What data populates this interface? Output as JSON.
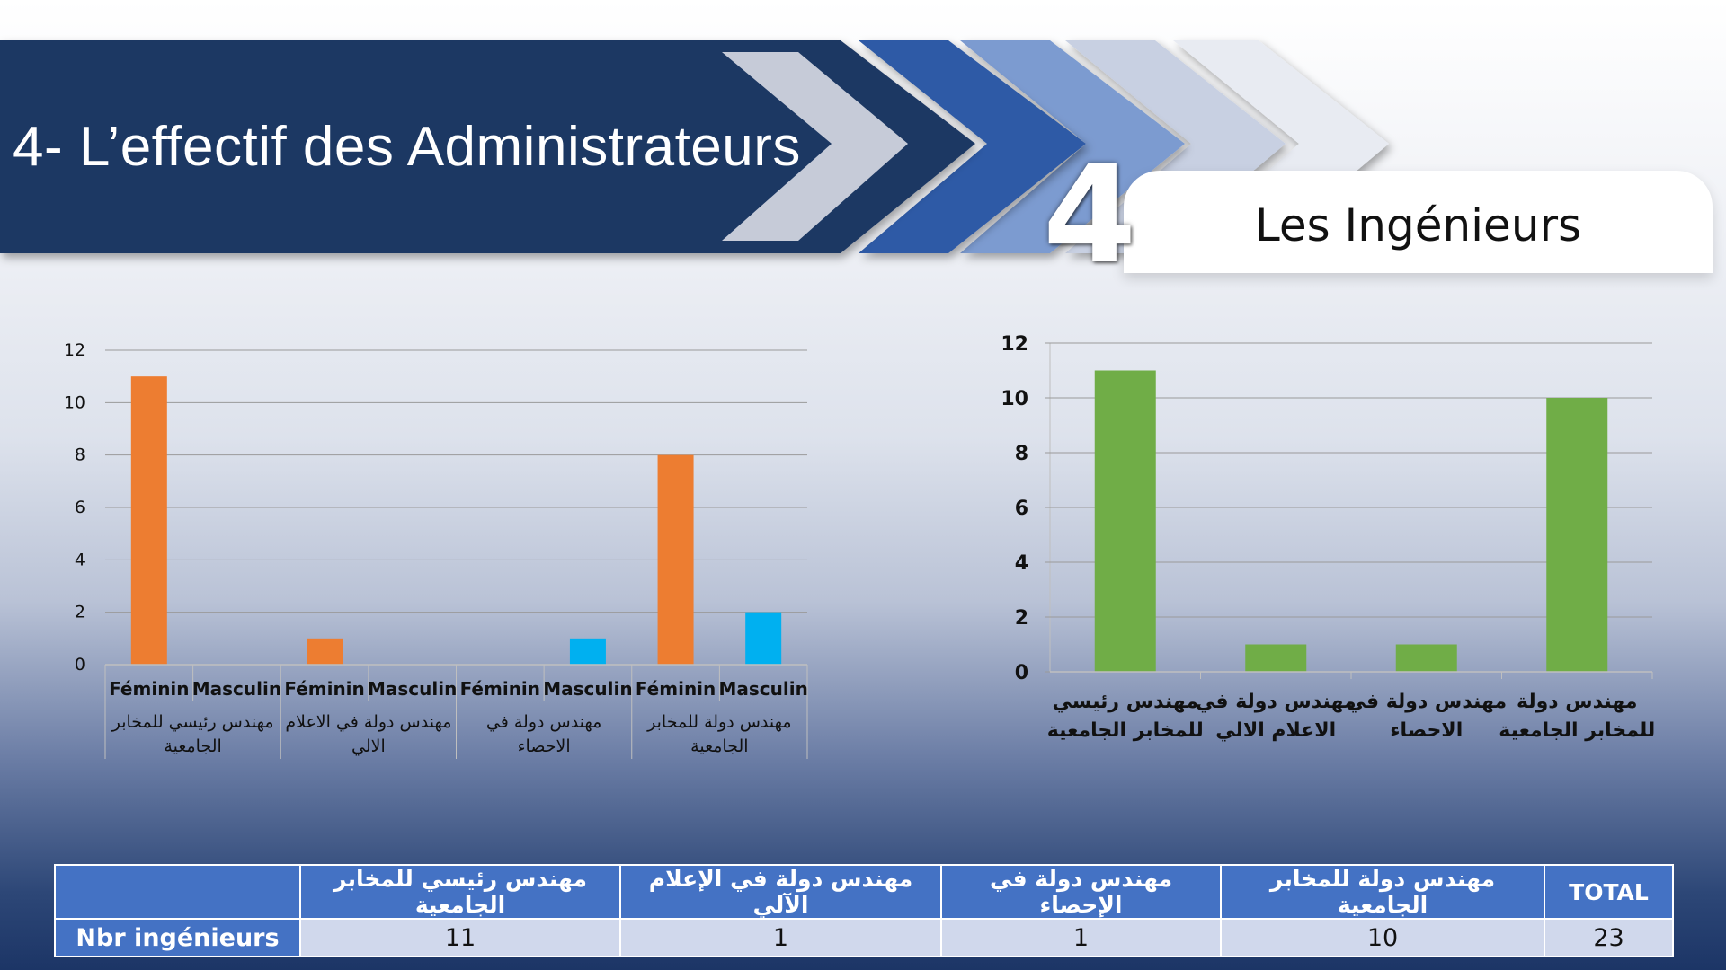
{
  "banner": {
    "title": "4- L’effectif des Administrateurs"
  },
  "section": {
    "number": "4",
    "subtitle": "Les Ingénieurs"
  },
  "chart_data": [
    {
      "type": "bar",
      "id": "gender-breakdown",
      "groups": [
        {
          "label": "مهندس رئيسي للمخابر الجامعية",
          "lines": [
            "مهندس رئيسي للمخابر",
            "الجامعية"
          ]
        },
        {
          "label": "مهندس دولة في الاعلام الالي",
          "lines": [
            "مهندس  دولة في الاعلام",
            "الالي"
          ]
        },
        {
          "label": "مهندس دولة في الاحصاء",
          "lines": [
            "مهندس دولة في",
            "الاحصاء"
          ]
        },
        {
          "label": "مهندس دولة للمخابر الجامعية",
          "lines": [
            "مهندس دولة للمخابر",
            "الجامعية"
          ]
        }
      ],
      "subcategories": [
        "Féminin",
        "Masculin"
      ],
      "values": [
        [
          11,
          0
        ],
        [
          1,
          0
        ],
        [
          0,
          1
        ],
        [
          8,
          2
        ]
      ],
      "colors": {
        "Féminin": "#ed7d31",
        "Masculin": "#00b0f0"
      },
      "ylim": [
        0,
        12
      ],
      "yticks": [
        0,
        2,
        4,
        6,
        8,
        10,
        12
      ],
      "grid": true
    },
    {
      "type": "bar",
      "id": "totals",
      "categories": [
        {
          "label": "مهندس رئيسي للمخابر الجامعية",
          "lines": [
            "مهندس رئيسي",
            "للمخابر الجامعية"
          ]
        },
        {
          "label": "مهندس دولة في الاعلام الالي",
          "lines": [
            "مهندس  دولة في",
            "الاعلام الالي"
          ]
        },
        {
          "label": "مهندس دولة في الاحصاء",
          "lines": [
            "مهندس دولة في",
            "الاحصاء"
          ]
        },
        {
          "label": "مهندس دولة للمخابر الجامعية",
          "lines": [
            "مهندس دولة",
            "للمخابر الجامعية"
          ]
        }
      ],
      "values": [
        11,
        1,
        1,
        10
      ],
      "color": "#70ad47",
      "ylim": [
        0,
        12
      ],
      "yticks": [
        0,
        2,
        4,
        6,
        8,
        10,
        12
      ],
      "grid": true
    }
  ],
  "table": {
    "headers": [
      "",
      "مهندس رئيسي للمخابر الجامعية",
      "مهندس  دولة في الإعلام الآلي",
      "مهندس دولة في الإحصاء",
      "مهندس دولة للمخابر الجامعية",
      "TOTAL"
    ],
    "row": {
      "label": "Nbr ingénieurs",
      "values": [
        "11",
        "1",
        "1",
        "10",
        "23"
      ]
    }
  }
}
